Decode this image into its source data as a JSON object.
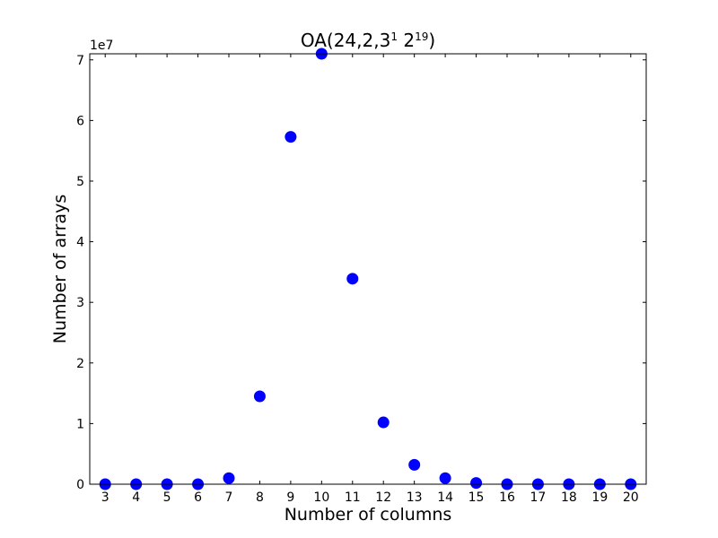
{
  "chart_data": {
    "type": "scatter",
    "title": "OA(24,2,3",
    "title_sup1": "1",
    "title_mid": " 2",
    "title_sup2": "19",
    "title_end": ")",
    "xlabel": "Number of columns",
    "ylabel": "Number of arrays",
    "y_scale_label": "1e7",
    "xlim": [
      2.5,
      20.5
    ],
    "ylim": [
      0,
      7.1
    ],
    "y_unit_multiplier": 10000000,
    "x_ticks": [
      "3",
      "4",
      "5",
      "6",
      "7",
      "8",
      "9",
      "10",
      "11",
      "12",
      "13",
      "14",
      "15",
      "16",
      "17",
      "18",
      "19",
      "20"
    ],
    "y_ticks": [
      "0",
      "1",
      "2",
      "3",
      "4",
      "5",
      "6",
      "7"
    ],
    "marker_color": "#0000ff",
    "grid": false,
    "series": [
      {
        "x": [
          3,
          4,
          5,
          6,
          7,
          8,
          9,
          10,
          11,
          12,
          13,
          14,
          15,
          16,
          17,
          18,
          19,
          20
        ],
        "y": [
          0.0,
          0.0,
          0.0,
          0.0,
          0.1,
          1.45,
          5.73,
          7.1,
          3.39,
          1.02,
          0.32,
          0.1,
          0.02,
          0.0,
          0.0,
          0.0,
          0.0,
          0.0
        ]
      }
    ]
  }
}
